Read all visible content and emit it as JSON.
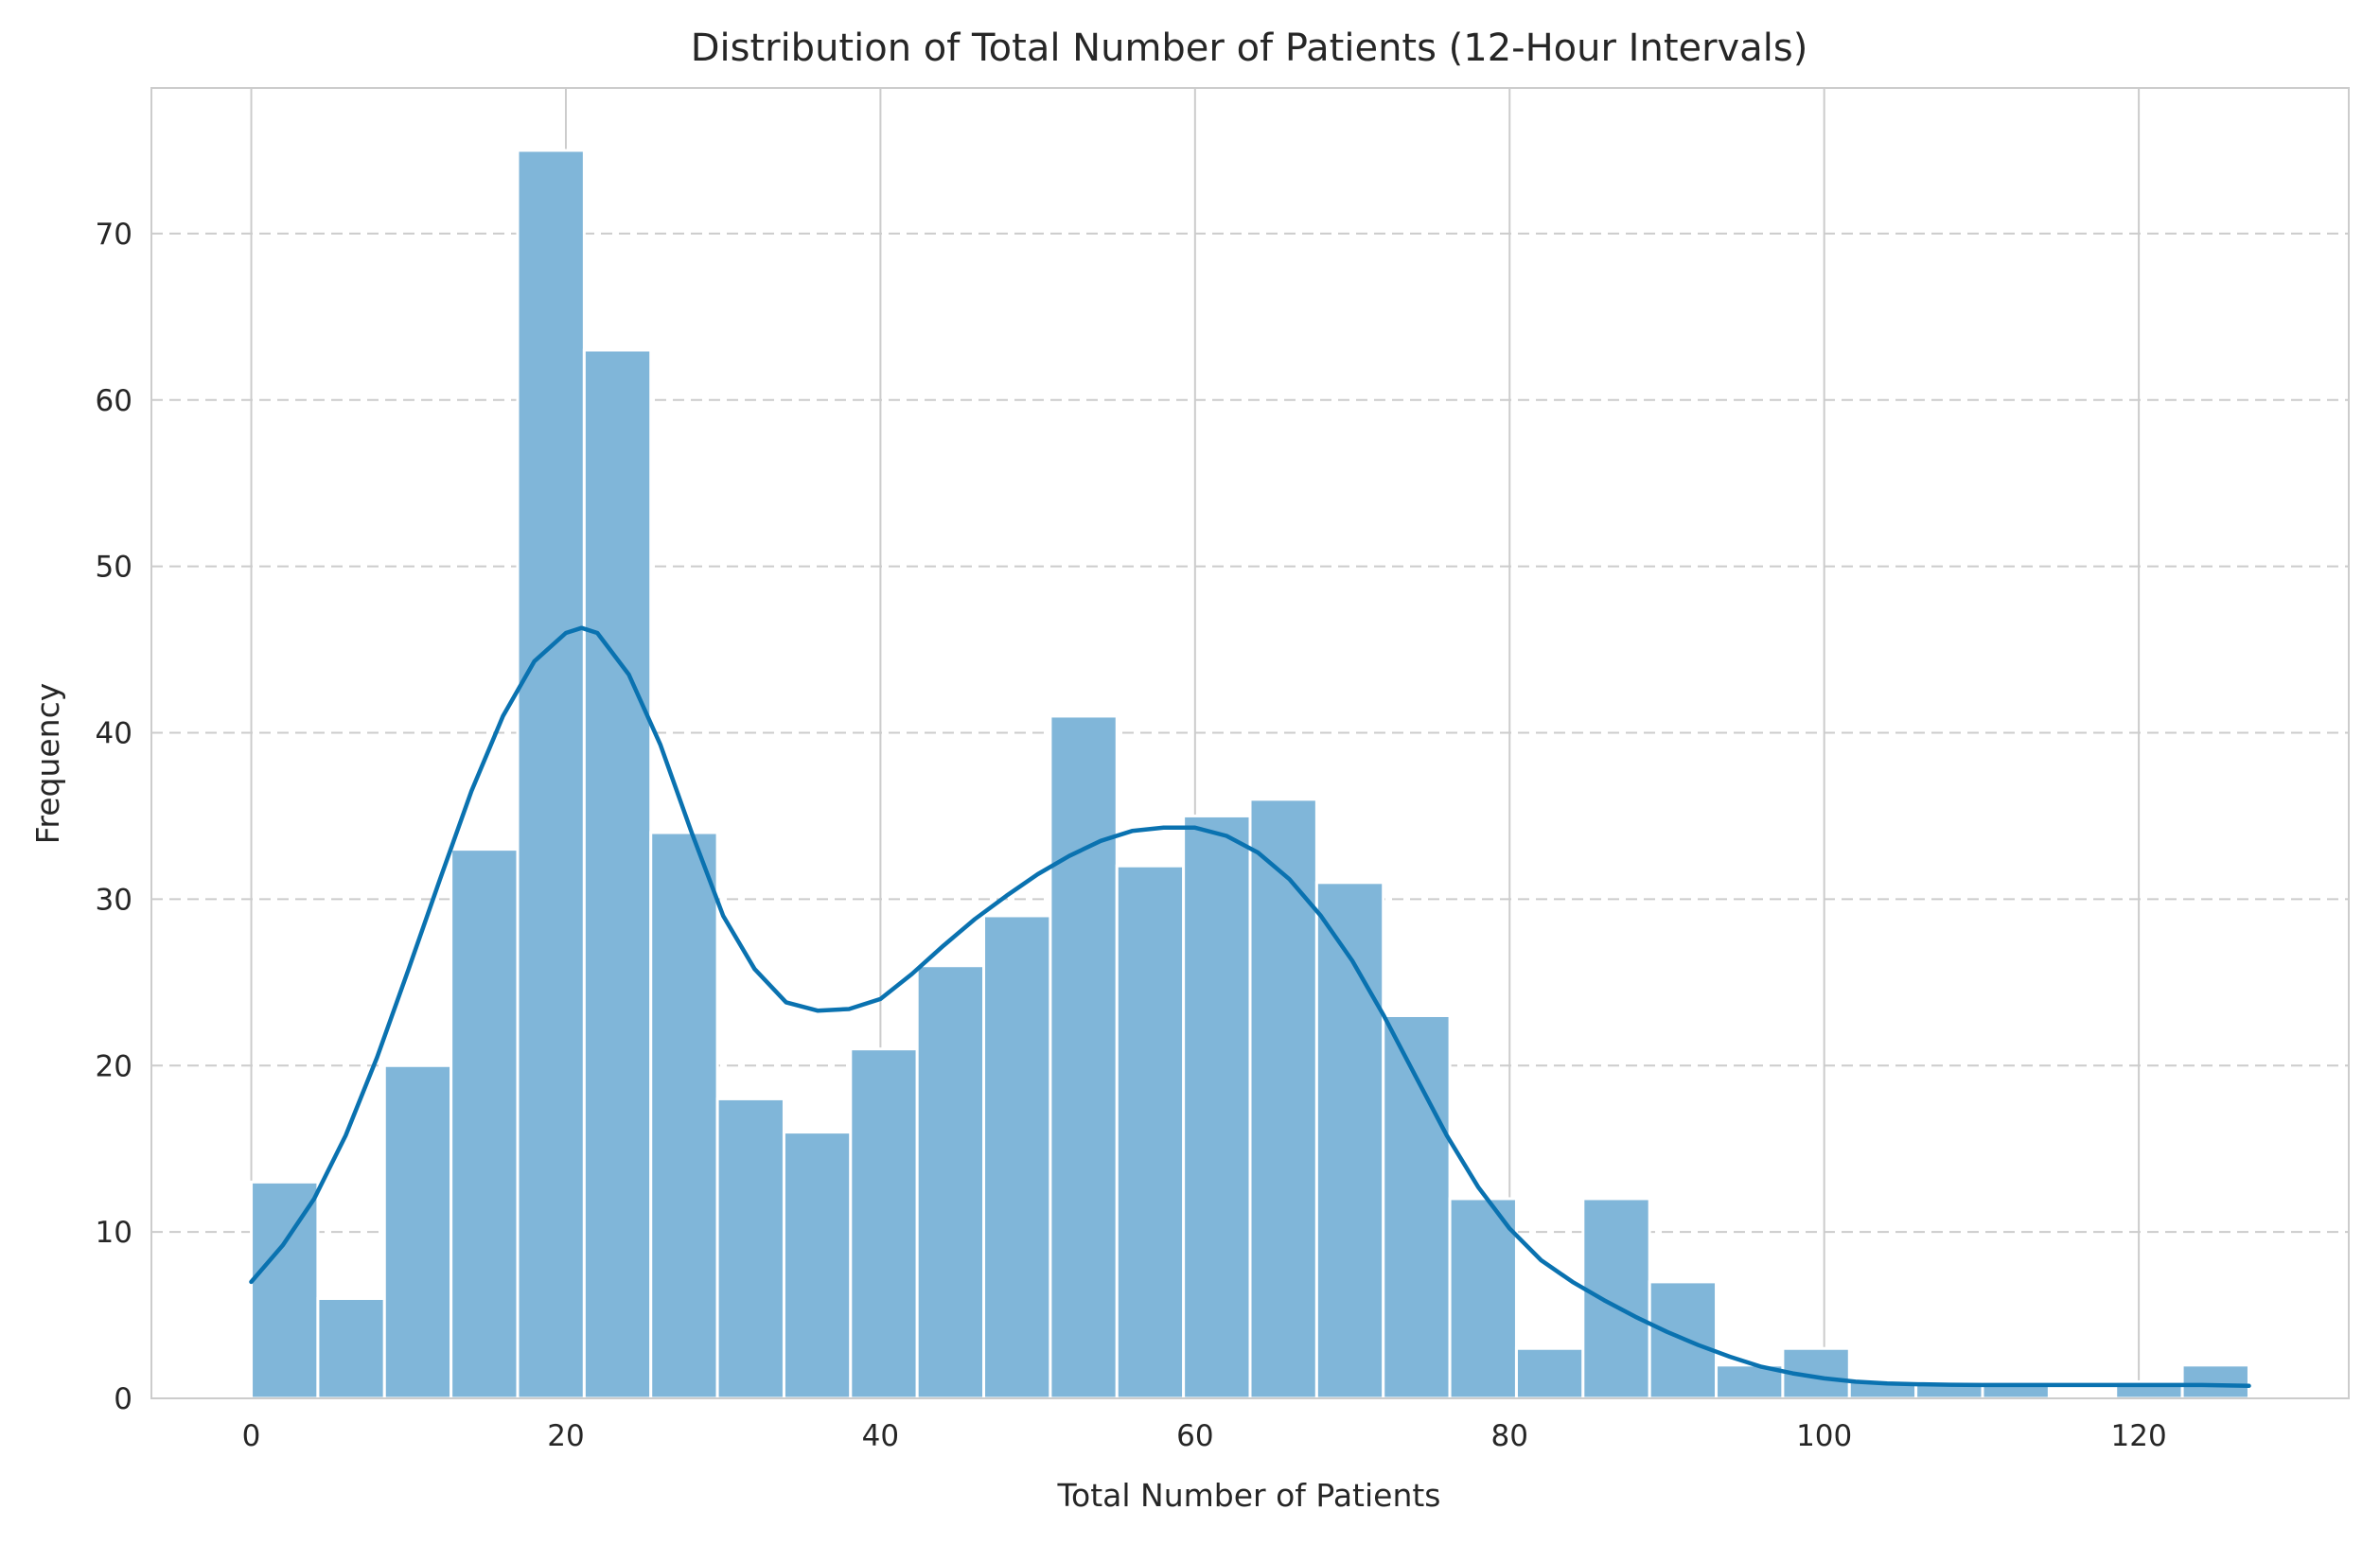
{
  "chart_data": {
    "type": "bar",
    "subtype": "histogram-with-kde",
    "title": "Distribution of Total Number of Patients (12-Hour Intervals)",
    "xlabel": "Total Number of Patients",
    "ylabel": "Frequency",
    "xlim": [
      -6.35,
      133.35
    ],
    "ylim": [
      0,
      78.75
    ],
    "xticks": [
      0,
      20,
      40,
      60,
      80,
      100,
      120
    ],
    "yticks": [
      0,
      10,
      20,
      30,
      40,
      50,
      60,
      70
    ],
    "x_grid": true,
    "y_grid": "dashed",
    "bins": {
      "start": 0,
      "end": 127,
      "count": 30,
      "values": [
        13,
        6,
        20,
        33,
        75,
        63,
        34,
        18,
        16,
        21,
        26,
        29,
        41,
        32,
        35,
        36,
        31,
        23,
        12,
        3,
        12,
        7,
        2,
        3,
        1,
        1,
        1,
        0,
        1,
        2
      ]
    },
    "kde": {
      "x": [
        0,
        2,
        4,
        6,
        8,
        10,
        12,
        14,
        16,
        18,
        20,
        21,
        22,
        24,
        26,
        28,
        30,
        32,
        34,
        36,
        38,
        40,
        42,
        44,
        46,
        48,
        50,
        52,
        54,
        56,
        58,
        60,
        62,
        64,
        66,
        68,
        70,
        72,
        74,
        76,
        78,
        80,
        82,
        84,
        86,
        88,
        90,
        92,
        94,
        96,
        98,
        100,
        102,
        104,
        106,
        108,
        110,
        112,
        114,
        116,
        118,
        120,
        122,
        124,
        127
      ],
      "y": [
        7.0,
        9.2,
        12.0,
        15.8,
        20.5,
        25.8,
        31.2,
        36.5,
        41.0,
        44.3,
        46.0,
        46.3,
        46.0,
        43.5,
        39.3,
        34.0,
        29.0,
        25.8,
        23.8,
        23.3,
        23.4,
        24.0,
        25.5,
        27.2,
        28.8,
        30.2,
        31.5,
        32.6,
        33.5,
        34.1,
        34.3,
        34.3,
        33.8,
        32.8,
        31.2,
        29.0,
        26.3,
        23.0,
        19.4,
        15.8,
        12.7,
        10.2,
        8.3,
        7.0,
        5.9,
        4.9,
        4.0,
        3.2,
        2.5,
        1.9,
        1.5,
        1.2,
        1.0,
        0.9,
        0.85,
        0.82,
        0.8,
        0.8,
        0.8,
        0.8,
        0.8,
        0.8,
        0.8,
        0.8,
        0.75
      ]
    },
    "colors": {
      "bar_fill": "#80b6d9",
      "bar_edge": "#ffffff",
      "kde_line": "#0a72b0",
      "grid": "#cccccc",
      "spine": "#cccccc"
    }
  }
}
